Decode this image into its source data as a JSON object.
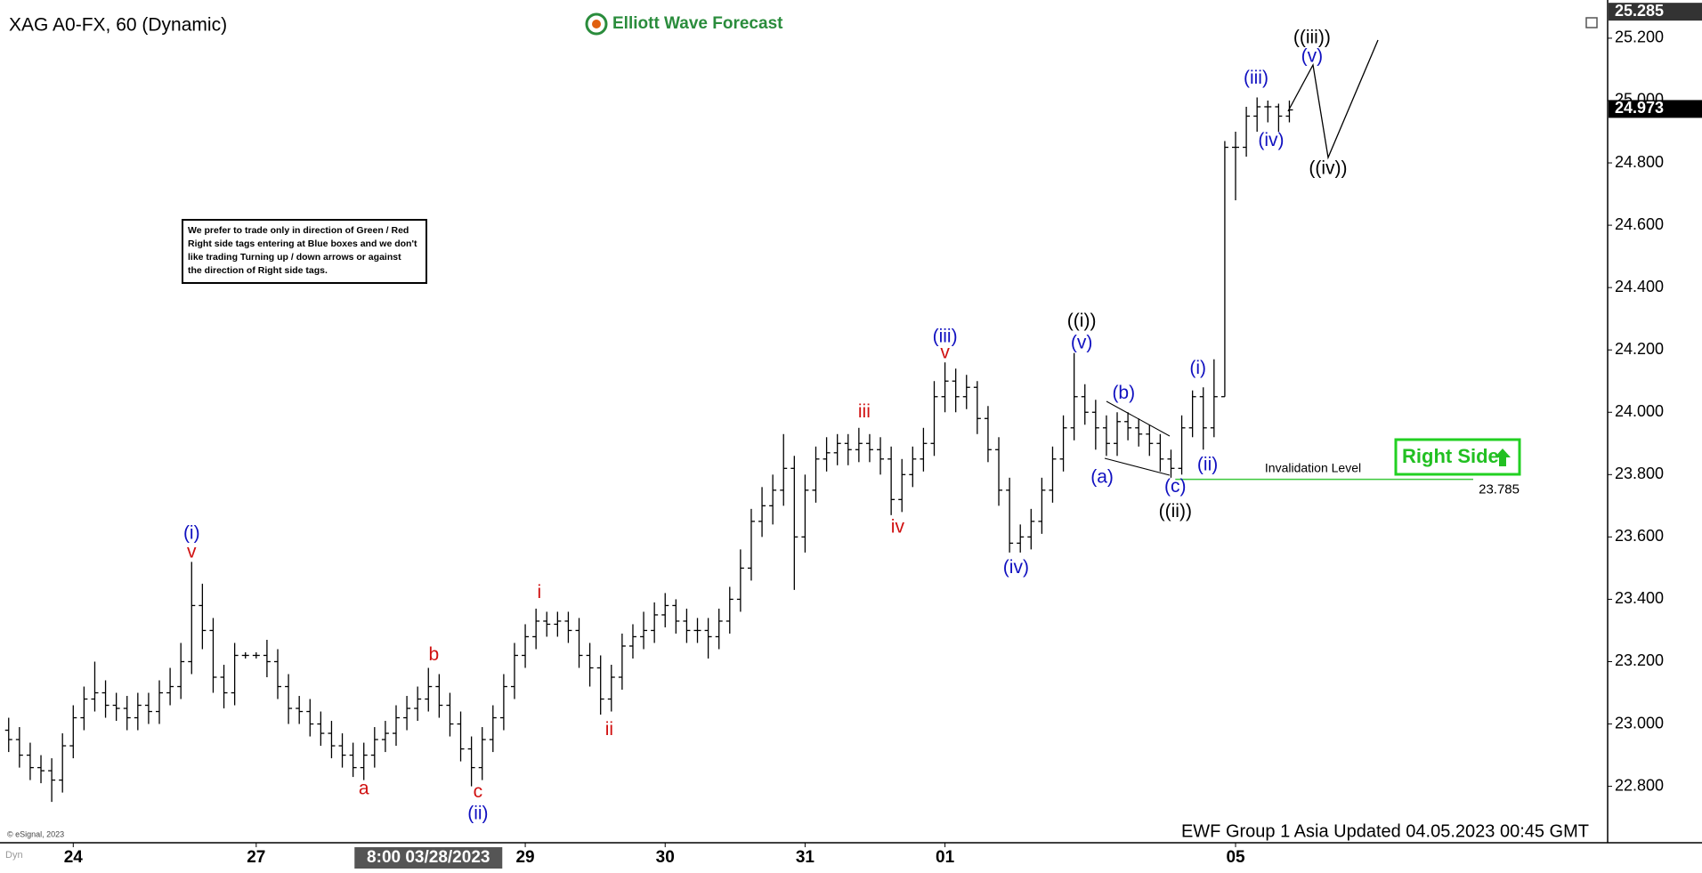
{
  "chart_data": {
    "type": "ohlc",
    "title": "XAG A0-FX, 60 (Dynamic)",
    "brand": "Elliott Wave Forecast",
    "footer": "EWF Group 1 Asia Updated 04.05.2023 00:45 GMT",
    "copyright": "© eSignal, 2023",
    "corner_label": "Dyn",
    "note": [
      "We prefer to trade only in direction of Green / Red",
      "Right side tags entering at Blue boxes and we don't",
      "like trading Turning up / down arrows or against",
      "the direction of Right side tags."
    ],
    "right_side_tag": "Right Side",
    "ylim": [
      22.619,
      25.294
    ],
    "yticks": [
      {
        "value": 22.8,
        "label": "22.800"
      },
      {
        "value": 23.0,
        "label": "23.000"
      },
      {
        "value": 23.2,
        "label": "23.200"
      },
      {
        "value": 23.4,
        "label": "23.400"
      },
      {
        "value": 23.6,
        "label": "23.600"
      },
      {
        "value": 23.8,
        "label": "23.800"
      },
      {
        "value": 24.0,
        "label": "24.000"
      },
      {
        "value": 24.2,
        "label": "24.200"
      },
      {
        "value": 24.4,
        "label": "24.400"
      },
      {
        "value": 24.6,
        "label": "24.600"
      },
      {
        "value": 24.8,
        "label": "24.800"
      },
      {
        "value": 25.0,
        "label": "25.000"
      },
      {
        "value": 25.2,
        "label": "25.200"
      }
    ],
    "xticks": [
      {
        "value": 6,
        "label": "24"
      },
      {
        "value": 23,
        "label": "27"
      },
      {
        "value": 48,
        "label": "29"
      },
      {
        "value": 61,
        "label": "30"
      },
      {
        "value": 74,
        "label": "31"
      },
      {
        "value": 87,
        "label": "01"
      },
      {
        "value": 114,
        "label": "05"
      }
    ],
    "crosshair": {
      "value": 39,
      "label": "8:00 03/28/2023"
    },
    "price_labels": [
      25.285,
      24.973
    ],
    "invalidation": {
      "label": "Invalidation Level",
      "value": 23.785,
      "color": "#3cc83c"
    },
    "color": "#000000",
    "open": [
      22.98,
      22.95,
      22.9,
      22.86,
      22.85,
      22.82,
      22.93,
      23.02,
      23.08,
      23.1,
      23.06,
      23.05,
      23.02,
      23.06,
      23.04,
      23.1,
      23.12,
      23.2,
      23.38,
      23.3,
      23.15,
      23.1,
      23.22,
      23.22,
      23.22,
      23.2,
      23.12,
      23.05,
      23.04,
      23.0,
      22.97,
      22.93,
      22.9,
      22.86,
      22.9,
      22.95,
      22.97,
      23.02,
      23.05,
      23.08,
      23.12,
      23.06,
      23.0,
      22.92,
      22.86,
      22.95,
      23.02,
      23.12,
      23.22,
      23.28,
      23.33,
      23.32,
      23.33,
      23.3,
      23.22,
      23.18,
      23.08,
      23.15,
      23.25,
      23.28,
      23.3,
      23.35,
      23.38,
      23.33,
      23.3,
      23.3,
      23.28,
      23.33,
      23.4,
      23.5,
      23.65,
      23.7,
      23.75,
      23.82,
      23.6,
      23.75,
      23.85,
      23.87,
      23.9,
      23.88,
      23.9,
      23.88,
      23.85,
      23.72,
      23.8,
      23.85,
      23.9,
      24.05,
      24.1,
      24.05,
      24.08,
      23.98,
      23.88,
      23.75,
      23.58,
      23.6,
      23.65,
      23.75,
      23.85,
      23.95,
      24.05,
      24.0,
      23.95,
      23.9,
      23.97,
      23.95,
      23.93,
      23.9,
      23.85,
      23.82,
      23.95,
      24.05,
      23.95,
      24.05,
      24.85,
      24.85,
      24.95,
      24.98,
      24.98,
      24.95
    ],
    "high": [
      23.02,
      22.99,
      22.94,
      22.9,
      22.89,
      22.97,
      23.06,
      23.12,
      23.2,
      23.14,
      23.1,
      23.09,
      23.1,
      23.1,
      23.14,
      23.18,
      23.26,
      23.52,
      23.45,
      23.34,
      23.19,
      23.26,
      23.23,
      23.23,
      23.27,
      23.24,
      23.16,
      23.09,
      23.08,
      23.04,
      23.01,
      22.97,
      22.94,
      22.94,
      22.99,
      23.01,
      23.06,
      23.09,
      23.12,
      23.18,
      23.16,
      23.1,
      23.04,
      22.96,
      22.99,
      23.06,
      23.16,
      23.26,
      23.32,
      23.37,
      23.36,
      23.36,
      23.36,
      23.34,
      23.26,
      23.22,
      23.19,
      23.29,
      23.32,
      23.36,
      23.39,
      23.42,
      23.4,
      23.37,
      23.34,
      23.34,
      23.37,
      23.44,
      23.56,
      23.69,
      23.76,
      23.8,
      23.93,
      23.86,
      23.8,
      23.89,
      23.92,
      23.93,
      23.93,
      23.95,
      23.93,
      23.92,
      23.89,
      23.85,
      23.89,
      23.95,
      24.1,
      24.16,
      24.14,
      24.12,
      24.1,
      24.02,
      23.92,
      23.79,
      23.64,
      23.69,
      23.79,
      23.89,
      23.99,
      24.19,
      24.09,
      24.04,
      23.99,
      24.0,
      24.0,
      23.98,
      23.96,
      23.93,
      23.88,
      23.99,
      24.07,
      24.08,
      24.17,
      24.87,
      24.9,
      24.98,
      25.01,
      25.0,
      24.99,
      25.0
    ],
    "low": [
      22.91,
      22.86,
      22.82,
      22.81,
      22.75,
      22.78,
      22.89,
      22.98,
      23.04,
      23.02,
      23.01,
      22.98,
      22.98,
      23.0,
      23.0,
      23.06,
      23.08,
      23.16,
      23.24,
      23.1,
      23.05,
      23.06,
      23.21,
      23.21,
      23.15,
      23.08,
      23.0,
      23.0,
      22.96,
      22.93,
      22.89,
      22.86,
      22.83,
      22.82,
      22.86,
      22.91,
      22.93,
      22.98,
      23.01,
      23.04,
      23.02,
      22.96,
      22.88,
      22.8,
      22.82,
      22.91,
      22.98,
      23.08,
      23.18,
      23.24,
      23.28,
      23.28,
      23.26,
      23.18,
      23.12,
      23.03,
      23.04,
      23.11,
      23.21,
      23.24,
      23.26,
      23.31,
      23.29,
      23.26,
      23.26,
      23.21,
      23.24,
      23.29,
      23.36,
      23.46,
      23.6,
      23.64,
      23.7,
      23.43,
      23.55,
      23.71,
      23.81,
      23.83,
      23.83,
      23.84,
      23.84,
      23.8,
      23.67,
      23.68,
      23.76,
      23.81,
      23.86,
      24.0,
      24.0,
      24.01,
      23.93,
      23.84,
      23.7,
      23.55,
      23.55,
      23.56,
      23.61,
      23.71,
      23.81,
      23.91,
      23.96,
      23.88,
      23.86,
      23.86,
      23.91,
      23.89,
      23.86,
      23.81,
      23.79,
      23.8,
      23.92,
      23.88,
      23.92,
      24.05,
      24.68,
      24.82,
      24.9,
      24.93,
      24.9,
      24.93
    ],
    "close": [
      22.95,
      22.9,
      22.86,
      22.85,
      22.82,
      22.93,
      23.02,
      23.08,
      23.1,
      23.06,
      23.05,
      23.02,
      23.06,
      23.04,
      23.1,
      23.12,
      23.2,
      23.38,
      23.3,
      23.15,
      23.1,
      23.22,
      23.22,
      23.22,
      23.2,
      23.12,
      23.05,
      23.04,
      23.0,
      22.97,
      22.93,
      22.9,
      22.86,
      22.9,
      22.95,
      22.97,
      23.02,
      23.05,
      23.08,
      23.12,
      23.06,
      23.0,
      22.92,
      22.86,
      22.95,
      23.02,
      23.12,
      23.22,
      23.28,
      23.33,
      23.32,
      23.33,
      23.3,
      23.22,
      23.18,
      23.08,
      23.15,
      23.25,
      23.28,
      23.3,
      23.35,
      23.38,
      23.33,
      23.3,
      23.3,
      23.28,
      23.33,
      23.4,
      23.5,
      23.65,
      23.7,
      23.75,
      23.82,
      23.6,
      23.75,
      23.85,
      23.87,
      23.9,
      23.88,
      23.9,
      23.88,
      23.85,
      23.72,
      23.8,
      23.85,
      23.9,
      24.05,
      24.1,
      24.05,
      24.08,
      23.98,
      23.88,
      23.75,
      23.58,
      23.6,
      23.65,
      23.75,
      23.85,
      23.95,
      24.05,
      24.0,
      23.95,
      23.9,
      23.97,
      23.95,
      23.93,
      23.9,
      23.85,
      23.82,
      23.95,
      24.05,
      23.95,
      24.05,
      24.85,
      24.85,
      24.95,
      24.98,
      24.98,
      24.95,
      24.97
    ],
    "annotations": [
      {
        "text": "(i)",
        "x": 17,
        "y": 23.61,
        "color": "#1010c0"
      },
      {
        "text": "v",
        "x": 17,
        "y": 23.55,
        "color": "#d01010"
      },
      {
        "text": "a",
        "x": 33,
        "y": 22.79,
        "color": "#d01010"
      },
      {
        "text": "b",
        "x": 39.5,
        "y": 23.22,
        "color": "#d01010"
      },
      {
        "text": "c",
        "x": 43.6,
        "y": 22.78,
        "color": "#d01010"
      },
      {
        "text": "(ii)",
        "x": 43.6,
        "y": 22.71,
        "color": "#1010c0"
      },
      {
        "text": "i",
        "x": 49.3,
        "y": 23.42,
        "color": "#d01010"
      },
      {
        "text": "ii",
        "x": 55.8,
        "y": 22.98,
        "color": "#d01010"
      },
      {
        "text": "iii",
        "x": 79.5,
        "y": 24.0,
        "color": "#d01010"
      },
      {
        "text": "iv",
        "x": 82.6,
        "y": 23.63,
        "color": "#d01010"
      },
      {
        "text": "(iii)",
        "x": 87,
        "y": 24.24,
        "color": "#1010c0"
      },
      {
        "text": "v",
        "x": 87,
        "y": 24.19,
        "color": "#d01010"
      },
      {
        "text": "(iv)",
        "x": 93.6,
        "y": 23.5,
        "color": "#1010c0"
      },
      {
        "text": "((i))",
        "x": 99.7,
        "y": 24.29,
        "color": "#000000"
      },
      {
        "text": "(v)",
        "x": 99.7,
        "y": 24.22,
        "color": "#1010c0"
      },
      {
        "text": "(a)",
        "x": 101.6,
        "y": 23.79,
        "color": "#1010c0"
      },
      {
        "text": "(b)",
        "x": 103.6,
        "y": 24.06,
        "color": "#1010c0"
      },
      {
        "text": "(c)",
        "x": 108.4,
        "y": 23.76,
        "color": "#1010c0"
      },
      {
        "text": "((ii))",
        "x": 108.4,
        "y": 23.68,
        "color": "#000000"
      },
      {
        "text": "(i)",
        "x": 110.5,
        "y": 24.14,
        "color": "#1010c0"
      },
      {
        "text": "(ii)",
        "x": 111.4,
        "y": 23.83,
        "color": "#1010c0"
      },
      {
        "text": "(iii)",
        "x": 115.9,
        "y": 25.07,
        "color": "#1010c0"
      },
      {
        "text": "(iv)",
        "x": 117.3,
        "y": 24.87,
        "color": "#1010c0"
      },
      {
        "text": "(v)",
        "x": 121.1,
        "y": 25.14,
        "color": "#1010c0"
      },
      {
        "text": "((iii))",
        "x": 121.1,
        "y": 25.2,
        "color": "#000000"
      },
      {
        "text": "((iv))",
        "x": 122.6,
        "y": 24.78,
        "color": "#000000"
      }
    ]
  }
}
